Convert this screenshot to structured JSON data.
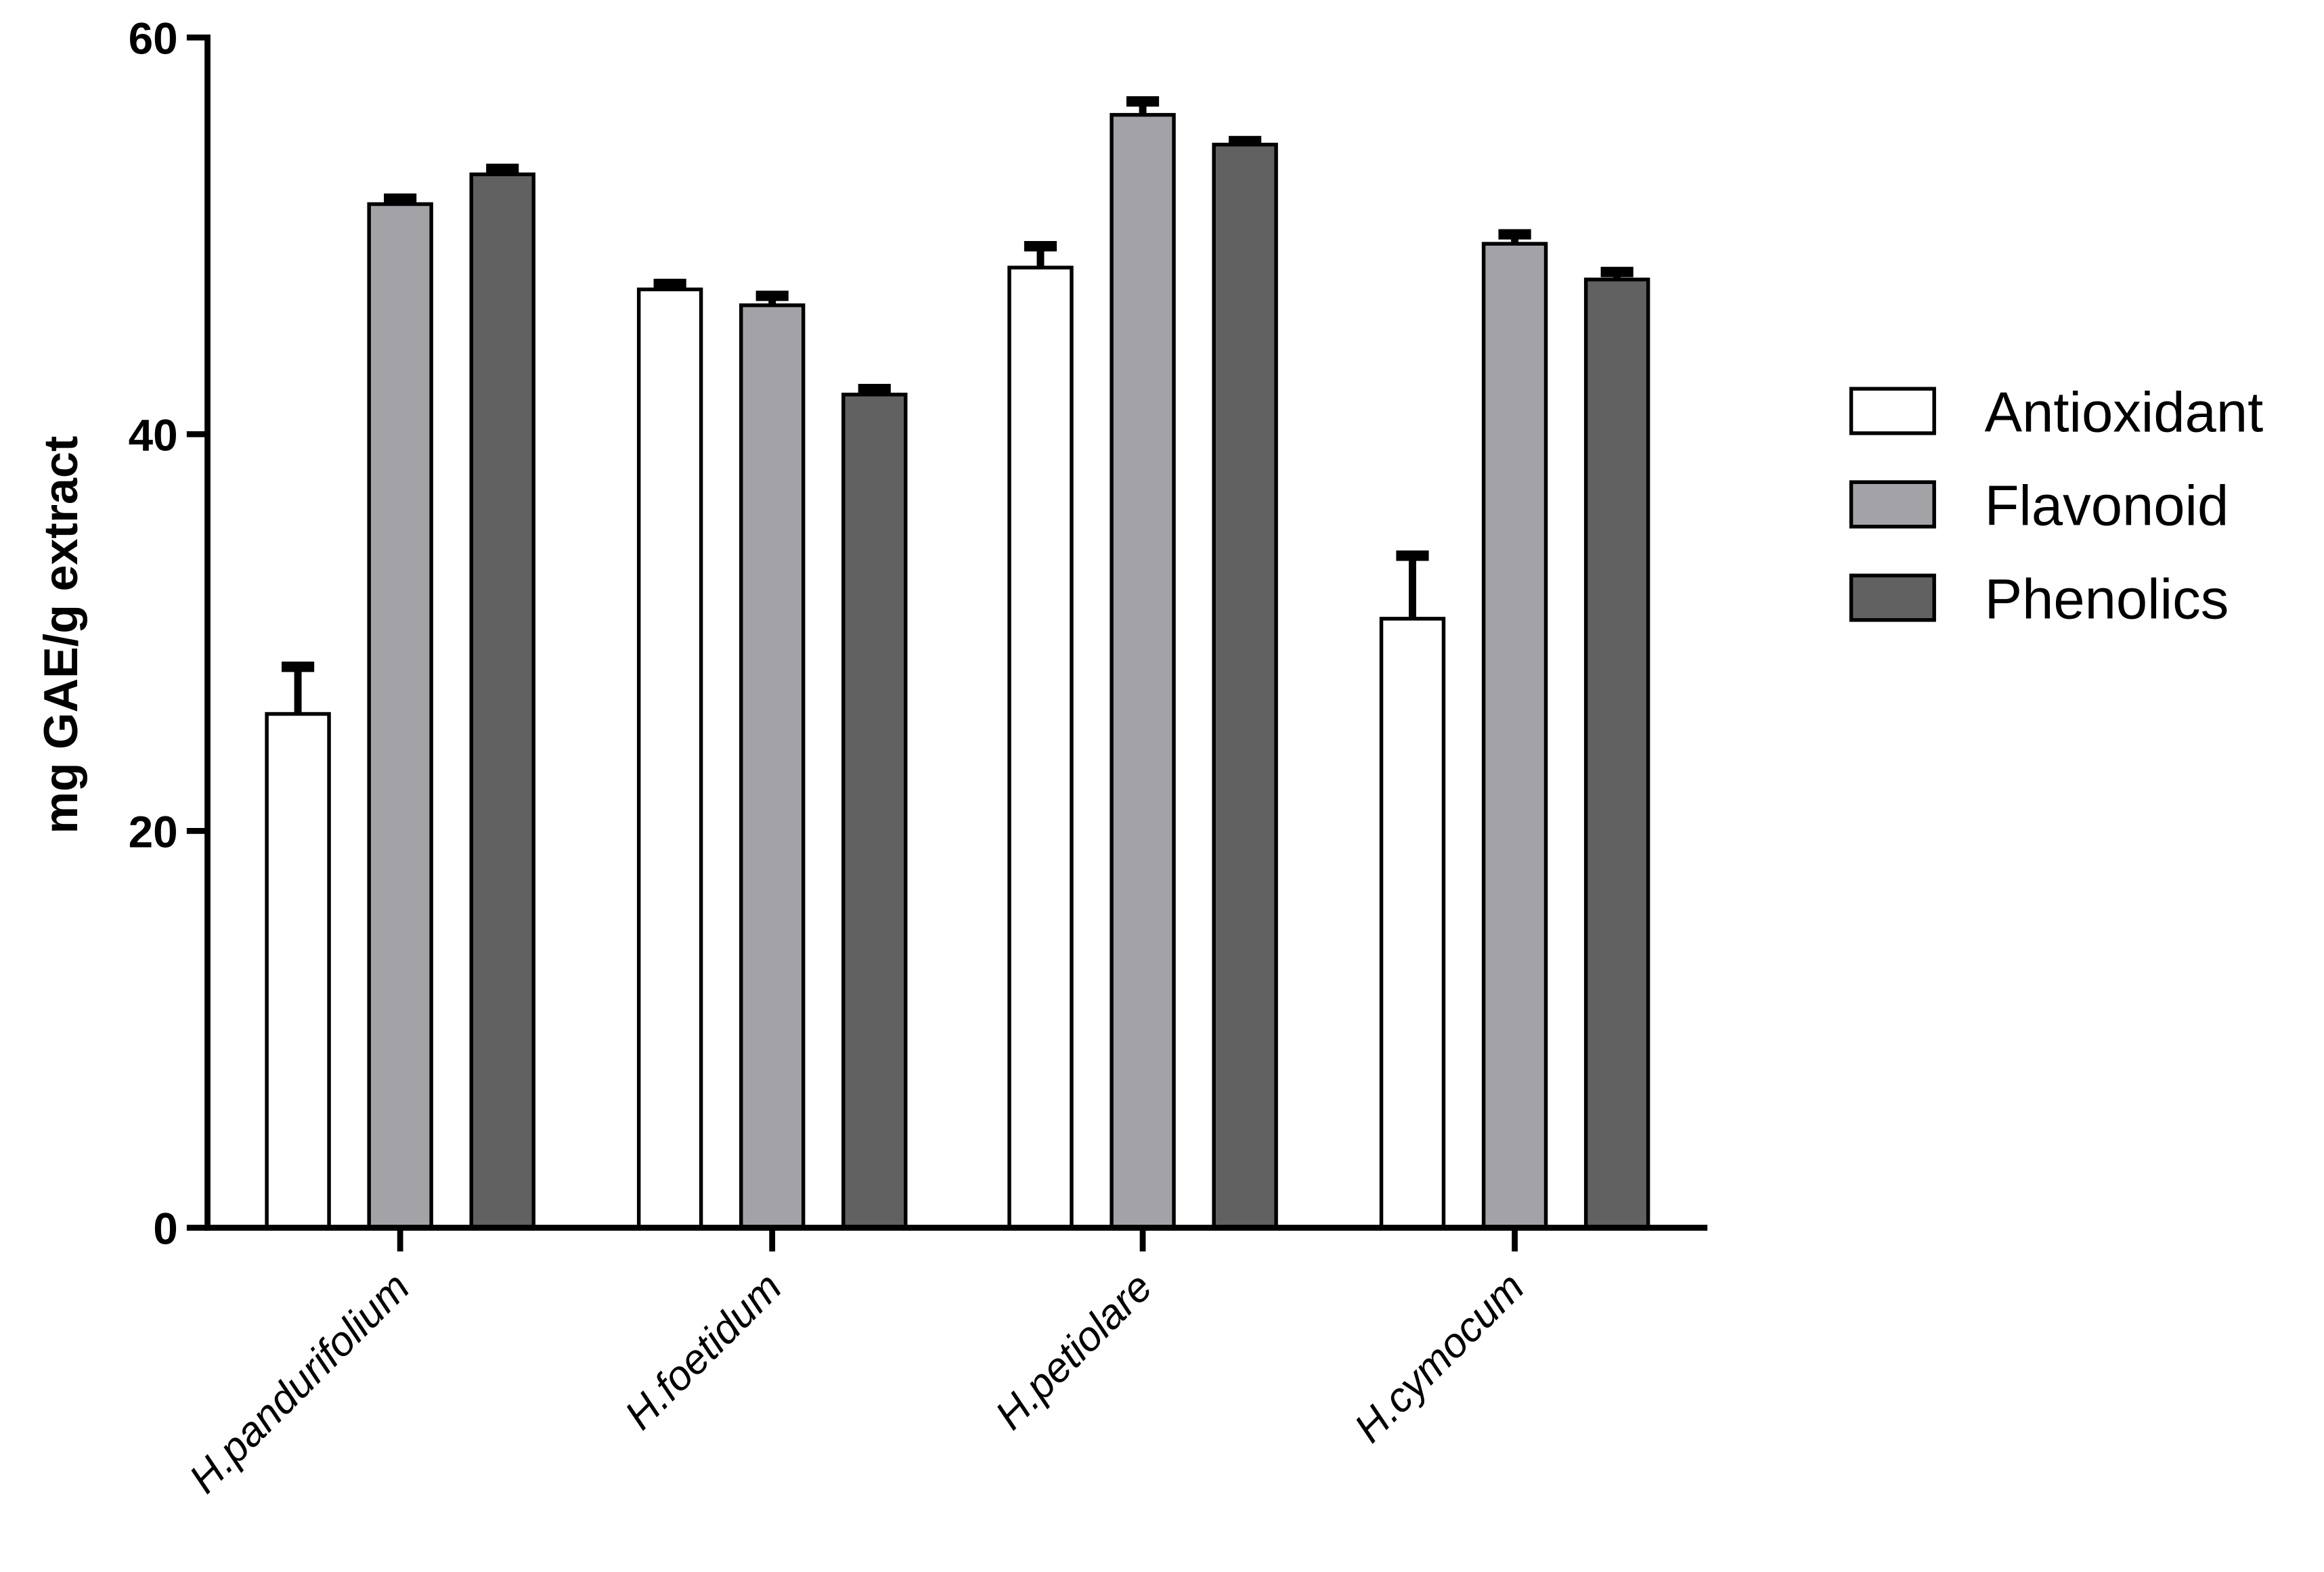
{
  "chart_data": {
    "type": "bar",
    "title": "",
    "xlabel": "",
    "ylabel": "mg GAE/g extract",
    "ylim": [
      0,
      60
    ],
    "yticks": [
      "0",
      "20",
      "40",
      "60"
    ],
    "categories": [
      "H.pandurifolium",
      "H.foetidum",
      "H.petiolare",
      "H.cymocum"
    ],
    "series": [
      {
        "name": "Antioxidant",
        "color": "#ffffff",
        "values": [
          25.9,
          47.3,
          48.4,
          30.7
        ],
        "errors": [
          2.6,
          0.5,
          1.3,
          3.4
        ]
      },
      {
        "name": "Flavonoid",
        "color": "#a3a2a7",
        "values": [
          51.6,
          46.5,
          56.1,
          49.6
        ],
        "errors": [
          0.5,
          0.7,
          0.9,
          0.7
        ]
      },
      {
        "name": "Phenolics",
        "color": "#616161",
        "values": [
          53.1,
          42.0,
          54.6,
          47.8
        ],
        "errors": [
          0.5,
          0.5,
          0.4,
          0.6
        ]
      }
    ],
    "grid": false,
    "legend_position": "right"
  }
}
